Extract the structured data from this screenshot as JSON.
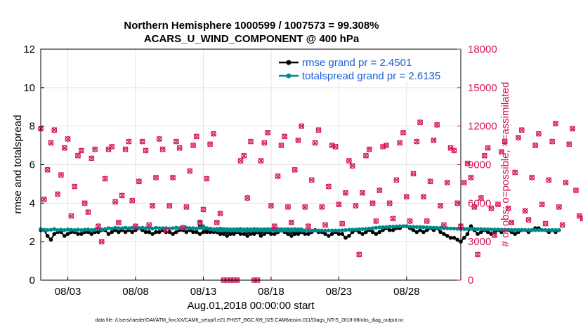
{
  "chart_data": {
    "type": "line",
    "title": "Northern Hemisphere 1000599 / 1007573 = 99.308%",
    "subtitle": "ACARS_U_WIND_COMPONENT @ 400 hPa",
    "xlabel": "Aug.01,2018 00:00:00 start",
    "ylabel": "rmse and totalspread",
    "ylabel_right": "# of obs: o=possible; ×=assimilated",
    "footnote": "data file: /Users/raeder/DAI/ATM_forcXX/CAM6_setup/f.e21.FHIST_BGC.f09_025.CAM6assim.011/Diags_NTrS_2018-08/obs_diag_output.nc",
    "x_ticks": [
      {
        "day": 3,
        "label": "08/03"
      },
      {
        "day": 8,
        "label": "08/08"
      },
      {
        "day": 13,
        "label": "08/13"
      },
      {
        "day": 18,
        "label": "08/18"
      },
      {
        "day": 23,
        "label": "08/23"
      },
      {
        "day": 28,
        "label": "08/28"
      }
    ],
    "xlim": [
      1.0,
      32.0
    ],
    "ylim": [
      0,
      12
    ],
    "y_ticks": [
      0,
      2,
      4,
      6,
      8,
      10,
      12
    ],
    "ylim_right": [
      0,
      18000
    ],
    "y_ticks_right": [
      0,
      3000,
      6000,
      9000,
      12000,
      15000,
      18000
    ],
    "grid": true,
    "legend_position": "top-right",
    "series": [
      {
        "name": "rmse grand pr = 2.4501",
        "color": "#000000",
        "segments": [
          {
            "x_start": 1.0,
            "step": 0.25,
            "values": [
              2.6,
              2.6,
              2.3,
              2.1,
              2.4,
              2.5,
              2.5,
              2.3,
              2.4,
              2.5,
              2.5,
              2.4,
              2.4,
              2.5,
              2.5,
              2.4,
              2.5,
              2.5,
              2.6,
              2.6,
              2.4,
              2.5,
              2.6,
              2.5,
              2.6,
              2.5,
              2.6,
              2.5,
              2.6,
              2.7,
              2.6,
              2.5,
              2.5,
              2.4,
              2.5,
              2.5,
              2.6,
              2.5,
              2.5,
              2.4,
              2.5,
              2.6,
              2.6,
              2.5,
              2.6,
              2.5,
              2.5,
              2.4,
              2.5,
              2.5,
              2.6,
              2.6,
              2.5,
              2.4,
              2.5,
              2.5,
              2.5,
              2.4,
              2.5,
              2.6,
              2.6,
              2.5,
              2.5,
              2.4,
              2.5,
              2.5,
              2.6,
              2.5,
              2.6,
              2.6,
              2.5,
              2.6,
              2.6,
              2.6,
              2.5,
              2.5,
              2.4,
              2.5
            ]
          },
          {
            "x_start": 12.75,
            "step": 0.25,
            "values": [
              2.8,
              2.7,
              2.6,
              2.5,
              2.5,
              2.5,
              2.4,
              2.4,
              2.3,
              2.4,
              2.5,
              2.5,
              2.4,
              2.4,
              2.3,
              2.4,
              2.5,
              2.5,
              2.3,
              2.4,
              2.5,
              2.4,
              2.4,
              2.5,
              2.6,
              2.5,
              2.4,
              2.3,
              2.4,
              2.5,
              2.5,
              2.4,
              2.4,
              2.5,
              2.6,
              2.5,
              2.5,
              2.4,
              2.3,
              2.4,
              2.5,
              2.4,
              2.4,
              2.2,
              2.3,
              2.5,
              2.6,
              2.5,
              2.4,
              2.5,
              2.6,
              2.5,
              2.4,
              2.5,
              2.6,
              2.7,
              2.6,
              2.6,
              2.7,
              2.7,
              2.8,
              2.8,
              2.7,
              2.6,
              2.5,
              2.6,
              2.5,
              2.6,
              2.7,
              2.6,
              2.7,
              2.5,
              2.4,
              2.3,
              2.2,
              2.2,
              2.1,
              2.0,
              2.2,
              2.4,
              2.8,
              2.6,
              2.4,
              2.5,
              2.6,
              2.5,
              2.4,
              2.5,
              2.6,
              2.5,
              2.6,
              2.6,
              2.5,
              2.4,
              2.5,
              2.6,
              2.6,
              2.5,
              2.6,
              2.7,
              2.7,
              2.6,
              2.6,
              2.5,
              2.6,
              2.5,
              2.6
            ]
          }
        ]
      },
      {
        "name": "totalspread grand pr = 2.6135",
        "color": "#008b8b",
        "segments": [
          {
            "x_start": 1.0,
            "step": 0.25,
            "values": [
              2.65,
              2.62,
              2.6,
              2.62,
              2.65,
              2.6,
              2.62,
              2.6,
              2.63,
              2.62,
              2.6,
              2.62,
              2.6,
              2.62,
              2.63,
              2.6,
              2.62,
              2.65,
              2.63,
              2.66,
              2.7,
              2.68,
              2.72,
              2.7,
              2.7,
              2.72,
              2.7,
              2.72,
              2.72,
              2.7,
              2.72,
              2.7,
              2.7,
              2.68,
              2.72,
              2.7,
              2.7,
              2.7,
              2.68,
              2.7,
              2.72,
              2.7,
              2.7,
              2.72,
              2.7,
              2.7,
              2.68,
              2.72,
              2.7,
              2.7,
              2.68,
              2.65,
              2.66,
              2.68,
              2.66,
              2.65,
              2.64,
              2.64,
              2.65,
              2.66,
              2.64,
              2.65,
              2.64,
              2.66,
              2.65,
              2.64,
              2.64,
              2.65,
              2.65,
              2.64,
              2.65,
              2.64,
              2.64,
              2.65,
              2.64,
              2.65,
              2.64,
              2.64
            ]
          },
          {
            "x_start": 12.75,
            "step": 0.25,
            "values": [
              3.05,
              2.8,
              2.7,
              2.65,
              2.62,
              2.6,
              2.6,
              2.58,
              2.58,
              2.57,
              2.58,
              2.57,
              2.58,
              2.57,
              2.56,
              2.57,
              2.58,
              2.57,
              2.58,
              2.57,
              2.58,
              2.58,
              2.57,
              2.58,
              2.57,
              2.58,
              2.58,
              2.57,
              2.58,
              2.58,
              2.57,
              2.58,
              2.58,
              2.57,
              2.58,
              2.58,
              2.58,
              2.57,
              2.58,
              2.58,
              2.58,
              2.58,
              2.59,
              2.6,
              2.62,
              2.62,
              2.63,
              2.64,
              2.65,
              2.66,
              2.68,
              2.7,
              2.72,
              2.74,
              2.75,
              2.76,
              2.78,
              2.78,
              2.79,
              2.8,
              2.8,
              2.79,
              2.78,
              2.77,
              2.76,
              2.76,
              2.75,
              2.74,
              2.73,
              2.72,
              2.72,
              2.71,
              2.7,
              2.69,
              2.68,
              2.68,
              2.67,
              2.66,
              2.66,
              2.66,
              2.67,
              2.66,
              2.65,
              2.65,
              2.64,
              2.64,
              2.63,
              2.63,
              2.63,
              2.62,
              2.62,
              2.62,
              2.61,
              2.61,
              2.61,
              2.61,
              2.6,
              2.6,
              2.6,
              2.6,
              2.6,
              2.6,
              2.6,
              2.6,
              2.6,
              2.6,
              2.6
            ]
          }
        ]
      }
    ],
    "obs_series": {
      "name": "# of obs",
      "color": "#d4145a",
      "x_start": 1.0,
      "step": 0.25,
      "possible": [
        11800,
        6300,
        8600,
        10700,
        11700,
        6700,
        8200,
        10300,
        11000,
        5000,
        7300,
        9700,
        10100,
        6000,
        5300,
        9500,
        10200,
        4200,
        3000,
        7900,
        10200,
        10400,
        6100,
        4500,
        6600,
        10200,
        10800,
        6200,
        4200,
        7700,
        10800,
        10100,
        4300,
        5800,
        8000,
        11000,
        10200,
        3900,
        5800,
        8000,
        10800,
        10300,
        4100,
        5700,
        8500,
        10500,
        11200,
        4500,
        5500,
        7900,
        10600,
        11400,
        4500,
        5200,
        0,
        0,
        0,
        0,
        0,
        9300,
        9700,
        6400,
        10800,
        0,
        0,
        9300,
        10700,
        11500,
        5800,
        4200,
        8100,
        10500,
        11200,
        5700,
        4500,
        8600,
        10900,
        12000,
        5700,
        4200,
        7800,
        10700,
        11700,
        5700,
        4300,
        7300,
        10500,
        10400,
        5900,
        4400,
        6800,
        9300,
        8900,
        5800,
        2000,
        6800,
        9700,
        10200,
        6000,
        4600,
        7000,
        10400,
        10500,
        6000,
        4800,
        7800,
        10700,
        11500,
        6500,
        4600,
        8300,
        10800,
        12300,
        6500,
        4600,
        7700,
        10900,
        12100,
        5800,
        4300,
        7600,
        10300,
        10100,
        6000,
        4200,
        7600,
        9100,
        8000,
        5700,
        2000,
        6400,
        9700,
        10300,
        5600,
        3500,
        5900,
        10000,
        10800,
        5600,
        4500,
        8400,
        11100,
        11700,
        5400,
        4700,
        8000,
        10500,
        11400,
        5900,
        4400,
        7800,
        10800,
        12200,
        5700,
        4300,
        7600,
        10600,
        11800,
        7000,
        5000,
        4800,
        10500,
        0
      ]
    }
  }
}
